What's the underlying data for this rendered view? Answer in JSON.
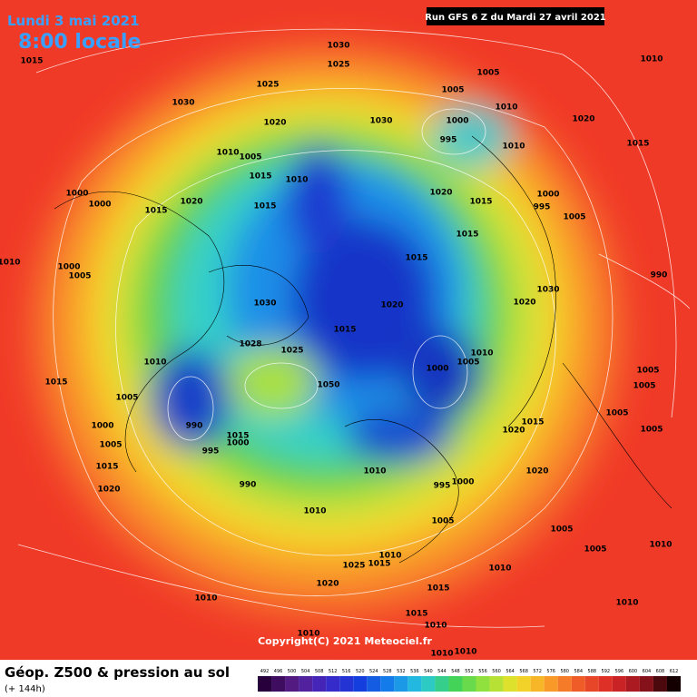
{
  "header": {
    "date": "Lundi 3 mai 2021",
    "time": "8:00 locale",
    "run": "Run GFS 6 Z du Mardi 27 avril 2021"
  },
  "footer": {
    "title": "Géop. Z500 & pression au sol",
    "lead": "(+ 144h)",
    "copyright": "Copyright(C) 2021 Meteociel.fr"
  },
  "colorbar": {
    "ticks": [
      492,
      496,
      500,
      504,
      508,
      512,
      516,
      520,
      524,
      528,
      532,
      536,
      540,
      544,
      548,
      552,
      556,
      560,
      564,
      568,
      572,
      576,
      580,
      584,
      588,
      592,
      596,
      600,
      604,
      608,
      612
    ]
  },
  "isobar_labels": [
    "1015",
    "1030",
    "1025",
    "1025",
    "1030",
    "1020",
    "1030",
    "1005",
    "1005",
    "1010",
    "1000",
    "995",
    "1010",
    "1020",
    "1010",
    "1015",
    "1010",
    "1005",
    "1015",
    "1010",
    "1020",
    "1015",
    "1000",
    "995",
    "1005",
    "1020",
    "1015",
    "1015",
    "1000",
    "1000",
    "1015",
    "1015",
    "1010",
    "1000",
    "1005",
    "990",
    "1030",
    "1020",
    "1030",
    "1020",
    "1015",
    "1028",
    "1025",
    "1010",
    "1000",
    "1005",
    "1010",
    "1005",
    "1015",
    "1005",
    "990",
    "1050",
    "1005",
    "1005",
    "1005",
    "1000",
    "1005",
    "995",
    "1015",
    "1000",
    "1015",
    "1020",
    "1015",
    "1020",
    "1010",
    "990",
    "1020",
    "995",
    "1000",
    "1010",
    "1005",
    "1005",
    "1005",
    "1010",
    "1010",
    "1025",
    "1015",
    "1020",
    "1010",
    "1015",
    "1010",
    "1010",
    "1015",
    "1010",
    "1010",
    "1010",
    "1010"
  ]
}
